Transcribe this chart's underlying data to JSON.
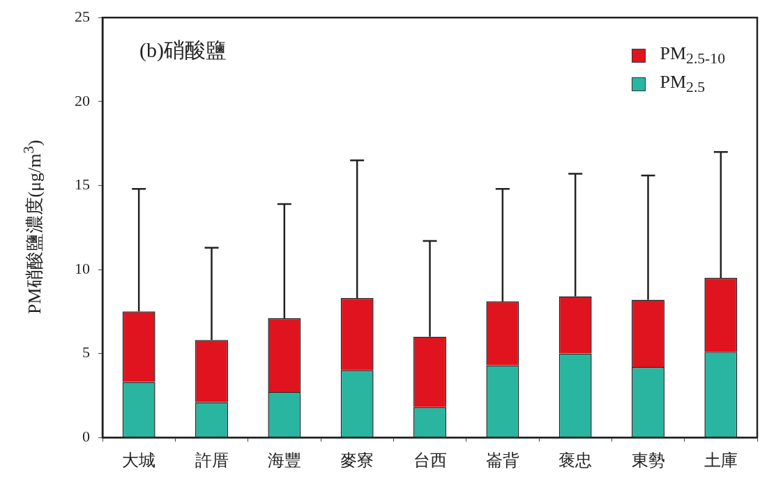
{
  "chart_data": {
    "type": "bar",
    "stacked": true,
    "title": "(b)硝酸鹽",
    "ylabel": "PM硝酸鹽濃度(μg/m$^{3}$)",
    "categories": [
      "大城",
      "許厝",
      "海豐",
      "麥寮",
      "台西",
      "崙背",
      "褒忠",
      "東勢",
      "土庫"
    ],
    "series": [
      {
        "name": "PM$_{2.5}$",
        "color": "#2ab5a0",
        "values": [
          3.3,
          2.1,
          2.7,
          4.0,
          1.8,
          4.3,
          5.0,
          4.2,
          5.1
        ]
      },
      {
        "name": "PM$_{2.5-10}$",
        "color": "#e0141e",
        "values": [
          4.2,
          3.7,
          4.4,
          4.3,
          4.2,
          3.8,
          3.4,
          4.0,
          4.4
        ],
        "errors": [
          [
            7.5,
            14.8
          ],
          [
            5.8,
            11.3
          ],
          [
            7.1,
            13.9
          ],
          [
            8.3,
            16.5
          ],
          [
            6.0,
            11.7
          ],
          [
            8.1,
            14.8
          ],
          [
            8.4,
            15.7
          ],
          [
            8.2,
            15.6
          ],
          [
            9.5,
            17.0
          ]
        ]
      }
    ],
    "ylim": [
      0,
      25
    ],
    "yticks": [
      0,
      5,
      10,
      15,
      20,
      25
    ],
    "grid": false,
    "legend": "top right"
  }
}
